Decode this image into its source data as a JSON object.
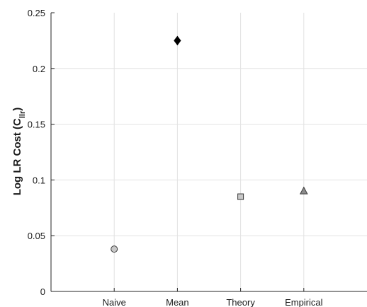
{
  "chart_data": {
    "type": "scatter",
    "categories": [
      "Naive",
      "Mean",
      "Theory",
      "Empirical"
    ],
    "ylabel": "Log LR Cost (C",
    "ylabel_subscript": "llr",
    "ylabel_suffix": ")",
    "ylim": [
      0,
      0.25
    ],
    "yticks": [
      0,
      0.05,
      0.1,
      0.15,
      0.2,
      0.25
    ],
    "ytick_labels": [
      "0",
      "0.05",
      "0.1",
      "0.15",
      "0.2",
      "0.25"
    ],
    "grid": true,
    "points": [
      {
        "category": "Naive",
        "value": 0.038,
        "marker": "circle",
        "color": "#c8c8c8"
      },
      {
        "category": "Mean",
        "value": 0.225,
        "marker": "diamond",
        "color": "#000000"
      },
      {
        "category": "Theory",
        "value": 0.085,
        "marker": "square",
        "color": "#c8c8c8"
      },
      {
        "category": "Empirical",
        "value": 0.09,
        "marker": "triangle",
        "color": "#8c8c8c"
      }
    ]
  }
}
